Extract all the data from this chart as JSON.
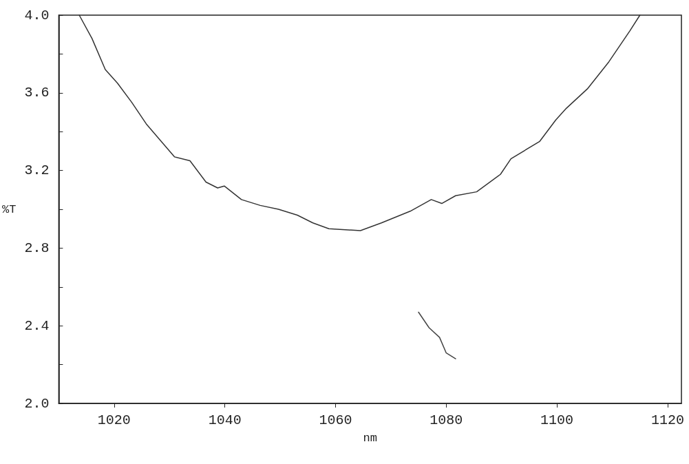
{
  "chart_data": {
    "type": "line",
    "xlabel": "nm",
    "ylabel": "%T",
    "xlim": [
      1010,
      1122.5
    ],
    "xticks": [
      1020,
      1040,
      1060,
      1080,
      1100,
      1120
    ],
    "ylim": [
      2,
      4
    ],
    "yticks": [
      {
        "value": 2,
        "label": "2.0"
      },
      {
        "value": 2.2,
        "label": null
      },
      {
        "value": 2.4,
        "label": "2.4"
      },
      {
        "value": 2.6,
        "label": null
      },
      {
        "value": 2.8,
        "label": "2.8"
      },
      {
        "value": 3,
        "label": null
      },
      {
        "value": 3.2,
        "label": "3.2"
      },
      {
        "value": 3.4,
        "label": null
      },
      {
        "value": 3.6,
        "label": "3.6"
      },
      {
        "value": 3.8,
        "label": null
      },
      {
        "value": 4,
        "label": "4.0"
      }
    ],
    "grid": false,
    "marker": "none",
    "line_style": "solid",
    "series": [
      {
        "color": "#333333",
        "x": [
          1013.7,
          1016.0,
          1018.4,
          1020.6,
          1023.2,
          1025.8,
          1028.2,
          1030.9,
          1033.7,
          1036.6,
          1038.7,
          1039.9,
          1043.0,
          1046.4,
          1049.7,
          1053.1,
          1055.9,
          1058.8,
          1064.5,
          1068.3,
          1073.5,
          1077.3,
          1079.2,
          1081.7,
          1085.5,
          1089.8,
          1091.7,
          1096.9,
          1099.8,
          1101.7,
          1105.5,
          1109.4,
          1113.2,
          1115.0
        ],
        "values": [
          4.0,
          3.88,
          3.72,
          3.65,
          3.55,
          3.44,
          3.36,
          3.27,
          3.25,
          3.14,
          3.11,
          3.12,
          3.05,
          3.02,
          3.0,
          2.97,
          2.93,
          2.9,
          2.89,
          2.93,
          2.99,
          3.05,
          3.03,
          3.07,
          3.09,
          3.18,
          3.26,
          3.35,
          3.46,
          3.52,
          3.62,
          3.76,
          3.92,
          4.0
        ]
      },
      {
        "color": "#444444",
        "x": [
          1075.0,
          1076.9,
          1078.8,
          1080.0,
          1081.7
        ],
        "values": [
          2.47,
          2.39,
          2.34,
          2.26,
          2.23
        ]
      }
    ]
  }
}
